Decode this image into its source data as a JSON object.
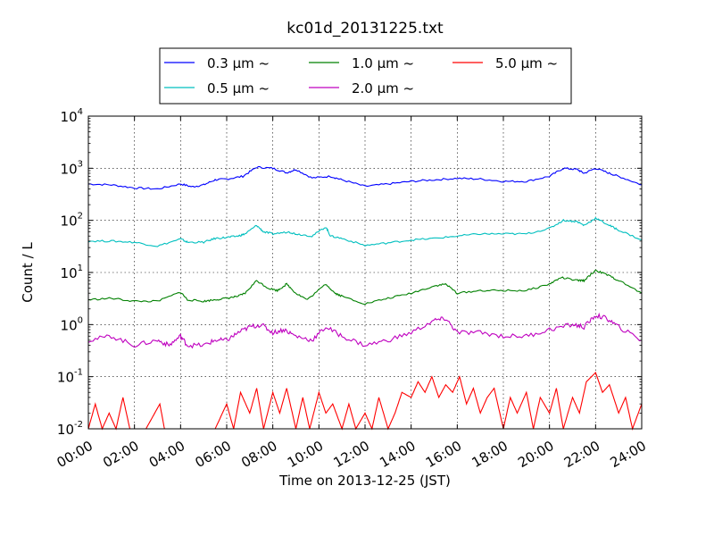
{
  "chart_data": {
    "type": "line",
    "title": "kc01d_20131225.txt",
    "xlabel": "Time on 2013-12-25 (JST)",
    "ylabel": "Count / L",
    "y_scale": "log",
    "ylim": [
      0.01,
      10000
    ],
    "xlim_hours": [
      0,
      24
    ],
    "x_tick_labels": [
      "00:00",
      "02:00",
      "04:00",
      "06:00",
      "08:00",
      "10:00",
      "12:00",
      "14:00",
      "16:00",
      "18:00",
      "20:00",
      "22:00",
      "24:00"
    ],
    "y_ticks": [
      {
        "base": "10",
        "exp": "-2"
      },
      {
        "base": "10",
        "exp": "-1"
      },
      {
        "base": "10",
        "exp": "0"
      },
      {
        "base": "10",
        "exp": "1"
      },
      {
        "base": "10",
        "exp": "2"
      },
      {
        "base": "10",
        "exp": "3"
      },
      {
        "base": "10",
        "exp": "4"
      }
    ],
    "grid": true,
    "legend_position": "top",
    "legend_suffix": "μm  ~",
    "series": [
      {
        "name": "0.3",
        "color": "#0000ff",
        "points": [
          [
            0,
            500
          ],
          [
            1,
            480
          ],
          [
            2,
            420
          ],
          [
            3,
            400
          ],
          [
            4,
            500
          ],
          [
            4.5,
            440
          ],
          [
            5,
            480
          ],
          [
            5.5,
            600
          ],
          [
            6,
            620
          ],
          [
            6.7,
            700
          ],
          [
            7.3,
            1050
          ],
          [
            8,
            1000
          ],
          [
            8.6,
            820
          ],
          [
            9,
            950
          ],
          [
            9.7,
            650
          ],
          [
            10.5,
            700
          ],
          [
            11,
            600
          ],
          [
            12,
            450
          ],
          [
            13,
            500
          ],
          [
            14,
            560
          ],
          [
            15,
            600
          ],
          [
            16,
            640
          ],
          [
            17,
            620
          ],
          [
            18,
            560
          ],
          [
            19,
            560
          ],
          [
            20,
            700
          ],
          [
            20.6,
            1000
          ],
          [
            21.2,
            950
          ],
          [
            21.5,
            800
          ],
          [
            22,
            1000
          ],
          [
            22.6,
            800
          ],
          [
            23,
            700
          ],
          [
            24,
            480
          ]
        ]
      },
      {
        "name": "0.5",
        "color": "#00bfbf",
        "points": [
          [
            0,
            40
          ],
          [
            1,
            40
          ],
          [
            2,
            38
          ],
          [
            3,
            32
          ],
          [
            4,
            44
          ],
          [
            4.3,
            38
          ],
          [
            5,
            38
          ],
          [
            5.5,
            45
          ],
          [
            6,
            47
          ],
          [
            6.5,
            50
          ],
          [
            6.8,
            55
          ],
          [
            7.3,
            80
          ],
          [
            7.6,
            60
          ],
          [
            8,
            55
          ],
          [
            8.7,
            60
          ],
          [
            9,
            55
          ],
          [
            9.7,
            50
          ],
          [
            10.3,
            75
          ],
          [
            10.5,
            50
          ],
          [
            11,
            45
          ],
          [
            12,
            33
          ],
          [
            13,
            37
          ],
          [
            14,
            42
          ],
          [
            15,
            45
          ],
          [
            16,
            50
          ],
          [
            17,
            55
          ],
          [
            18,
            55
          ],
          [
            19,
            55
          ],
          [
            20,
            70
          ],
          [
            20.6,
            100
          ],
          [
            21.2,
            95
          ],
          [
            21.5,
            80
          ],
          [
            22,
            110
          ],
          [
            22.6,
            80
          ],
          [
            23,
            65
          ],
          [
            24,
            42
          ]
        ]
      },
      {
        "name": "1.0",
        "color": "#008000",
        "points": [
          [
            0,
            3
          ],
          [
            1,
            3.2
          ],
          [
            2,
            2.8
          ],
          [
            3,
            2.8
          ],
          [
            4,
            4.2
          ],
          [
            4.3,
            3
          ],
          [
            5,
            2.8
          ],
          [
            5.5,
            3
          ],
          [
            6,
            3.2
          ],
          [
            6.5,
            3.5
          ],
          [
            6.8,
            4
          ],
          [
            7.3,
            7
          ],
          [
            7.8,
            5
          ],
          [
            8.2,
            4.5
          ],
          [
            8.6,
            6
          ],
          [
            9,
            4
          ],
          [
            9.5,
            3
          ],
          [
            10.3,
            6
          ],
          [
            10.7,
            4
          ],
          [
            11,
            3.5
          ],
          [
            12,
            2.5
          ],
          [
            13,
            3.2
          ],
          [
            14,
            4
          ],
          [
            15,
            5.5
          ],
          [
            15.5,
            6
          ],
          [
            16,
            4
          ],
          [
            17,
            4.5
          ],
          [
            18,
            4.5
          ],
          [
            19,
            4.5
          ],
          [
            20,
            6
          ],
          [
            20.5,
            8
          ],
          [
            21.2,
            7
          ],
          [
            21.5,
            7
          ],
          [
            22,
            11
          ],
          [
            22.5,
            9
          ],
          [
            23,
            7
          ],
          [
            24,
            4
          ]
        ]
      },
      {
        "name": "2.0",
        "color": "#bf00bf",
        "points": [
          [
            0,
            0.5
          ],
          [
            1,
            0.6
          ],
          [
            2,
            0.4
          ],
          [
            3,
            0.5
          ],
          [
            3.5,
            0.4
          ],
          [
            4,
            0.6
          ],
          [
            4.3,
            0.4
          ],
          [
            5,
            0.4
          ],
          [
            5.5,
            0.5
          ],
          [
            6,
            0.5
          ],
          [
            6.5,
            0.7
          ],
          [
            7,
            0.9
          ],
          [
            7.5,
            1.0
          ],
          [
            8,
            0.7
          ],
          [
            8.5,
            0.8
          ],
          [
            9,
            0.6
          ],
          [
            9.7,
            0.5
          ],
          [
            10.3,
            0.9
          ],
          [
            11,
            0.6
          ],
          [
            12,
            0.4
          ],
          [
            13,
            0.5
          ],
          [
            14,
            0.7
          ],
          [
            15,
            1.2
          ],
          [
            15.5,
            1.3
          ],
          [
            16,
            0.7
          ],
          [
            17,
            0.7
          ],
          [
            18,
            0.6
          ],
          [
            19,
            0.6
          ],
          [
            20,
            0.8
          ],
          [
            21,
            1.0
          ],
          [
            21.5,
            0.9
          ],
          [
            22,
            1.5
          ],
          [
            22.5,
            1.3
          ],
          [
            23,
            0.9
          ],
          [
            24,
            0.5
          ]
        ]
      },
      {
        "name": "5.0",
        "color": "#ff0000",
        "points": [
          [
            0,
            0.01
          ],
          [
            0.3,
            0.03
          ],
          [
            0.6,
            0.01
          ],
          [
            0.9,
            0.02
          ],
          [
            1.2,
            0.01
          ],
          [
            1.5,
            0.04
          ],
          [
            1.8,
            0.01
          ],
          [
            2.5,
            0.01
          ],
          [
            3.1,
            0.03
          ],
          [
            3.3,
            0.01
          ],
          [
            4,
            0.01
          ],
          [
            4.5,
            0.01
          ],
          [
            5,
            0.01
          ],
          [
            5.5,
            0.01
          ],
          [
            6,
            0.03
          ],
          [
            6.3,
            0.01
          ],
          [
            6.6,
            0.05
          ],
          [
            7,
            0.02
          ],
          [
            7.3,
            0.06
          ],
          [
            7.6,
            0.01
          ],
          [
            8,
            0.05
          ],
          [
            8.3,
            0.02
          ],
          [
            8.6,
            0.06
          ],
          [
            9,
            0.01
          ],
          [
            9.3,
            0.04
          ],
          [
            9.6,
            0.01
          ],
          [
            10,
            0.05
          ],
          [
            10.3,
            0.02
          ],
          [
            10.6,
            0.03
          ],
          [
            11,
            0.01
          ],
          [
            11.3,
            0.03
          ],
          [
            11.6,
            0.01
          ],
          [
            12,
            0.02
          ],
          [
            12.3,
            0.01
          ],
          [
            12.6,
            0.04
          ],
          [
            13,
            0.01
          ],
          [
            13.3,
            0.02
          ],
          [
            13.6,
            0.05
          ],
          [
            14,
            0.04
          ],
          [
            14.3,
            0.08
          ],
          [
            14.6,
            0.05
          ],
          [
            14.9,
            0.1
          ],
          [
            15.2,
            0.04
          ],
          [
            15.5,
            0.07
          ],
          [
            15.8,
            0.05
          ],
          [
            16.1,
            0.1
          ],
          [
            16.4,
            0.03
          ],
          [
            16.7,
            0.06
          ],
          [
            17,
            0.02
          ],
          [
            17.3,
            0.04
          ],
          [
            17.6,
            0.06
          ],
          [
            18,
            0.01
          ],
          [
            18.3,
            0.04
          ],
          [
            18.6,
            0.02
          ],
          [
            19,
            0.05
          ],
          [
            19.3,
            0.01
          ],
          [
            19.6,
            0.04
          ],
          [
            20,
            0.02
          ],
          [
            20.3,
            0.06
          ],
          [
            20.6,
            0.01
          ],
          [
            21,
            0.04
          ],
          [
            21.3,
            0.02
          ],
          [
            21.6,
            0.08
          ],
          [
            22,
            0.12
          ],
          [
            22.3,
            0.05
          ],
          [
            22.6,
            0.07
          ],
          [
            23,
            0.02
          ],
          [
            23.3,
            0.04
          ],
          [
            23.6,
            0.01
          ],
          [
            24,
            0.03
          ]
        ]
      }
    ]
  }
}
